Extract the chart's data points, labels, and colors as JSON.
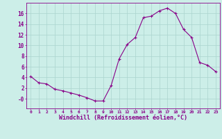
{
  "x": [
    0,
    1,
    2,
    3,
    4,
    5,
    6,
    7,
    8,
    9,
    10,
    11,
    12,
    13,
    14,
    15,
    16,
    17,
    18,
    19,
    20,
    21,
    22,
    23
  ],
  "y": [
    4.2,
    3.0,
    2.8,
    1.8,
    1.5,
    1.1,
    0.7,
    0.2,
    -0.4,
    -0.4,
    2.5,
    7.5,
    10.2,
    11.5,
    15.2,
    15.5,
    16.5,
    17.0,
    16.0,
    13.0,
    11.5,
    6.8,
    6.3,
    5.1
  ],
  "line_color": "#880088",
  "bg_color": "#cceee8",
  "grid_color": "#aad4ce",
  "xlabel": "Windchill (Refroidissement éolien,°C)",
  "xlim": [
    -0.5,
    23.5
  ],
  "ylim": [
    -1.8,
    18.0
  ],
  "yticks": [
    0,
    2,
    4,
    6,
    8,
    10,
    12,
    14,
    16
  ],
  "ytick_labels": [
    "-0",
    "2",
    "4",
    "6",
    "8",
    "10",
    "12",
    "14",
    "16"
  ],
  "xticks": [
    0,
    1,
    2,
    3,
    4,
    5,
    6,
    7,
    8,
    9,
    10,
    11,
    12,
    13,
    14,
    15,
    16,
    17,
    18,
    19,
    20,
    21,
    22,
    23
  ],
  "marker": "+",
  "markersize": 3,
  "linewidth": 0.8
}
